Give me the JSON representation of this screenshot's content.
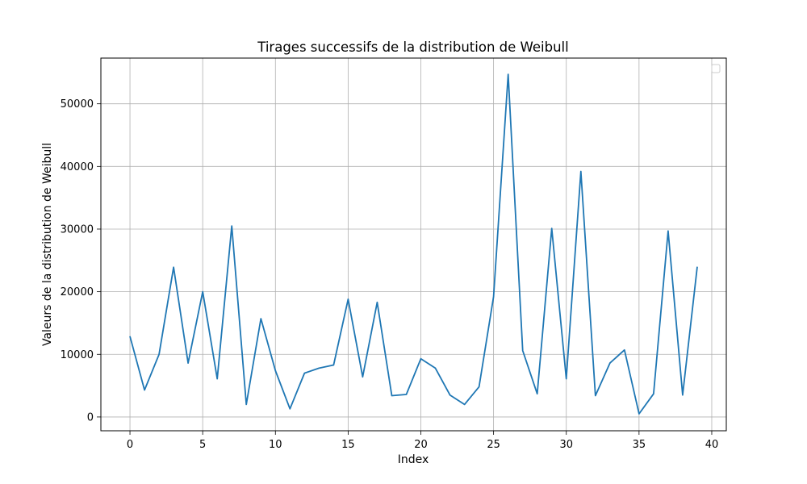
{
  "chart_data": {
    "type": "line",
    "title": "Tirages successifs de la distribution de Weibull",
    "xlabel": "Index",
    "ylabel": "Valeurs de la distribution de Weibull",
    "xlim": [
      -2,
      41
    ],
    "ylim": [
      -2200,
      57300
    ],
    "x_ticks": [
      0,
      5,
      10,
      15,
      20,
      25,
      30,
      35,
      40
    ],
    "y_ticks": [
      0,
      10000,
      20000,
      30000,
      40000,
      50000
    ],
    "grid": true,
    "legend": "top-right",
    "series": [
      {
        "color": "#1f77b4",
        "x": [
          0,
          1,
          2,
          3,
          4,
          5,
          6,
          7,
          8,
          9,
          10,
          11,
          12,
          13,
          14,
          15,
          16,
          17,
          18,
          19,
          20,
          21,
          22,
          23,
          24,
          25,
          26,
          27,
          28,
          29,
          30,
          31,
          32,
          33,
          34,
          35,
          36,
          37,
          38,
          39
        ],
        "y": [
          12900,
          4300,
          10000,
          23900,
          8600,
          20000,
          6100,
          30500,
          2000,
          15700,
          7400,
          1300,
          7000,
          7800,
          8300,
          18800,
          6400,
          18300,
          3400,
          3600,
          9300,
          7800,
          3500,
          2000,
          4800,
          19200,
          54700,
          10600,
          3700,
          30100,
          6100,
          39200,
          3400,
          8600,
          10700,
          500,
          3700,
          29700,
          3500,
          24000
        ]
      }
    ]
  }
}
